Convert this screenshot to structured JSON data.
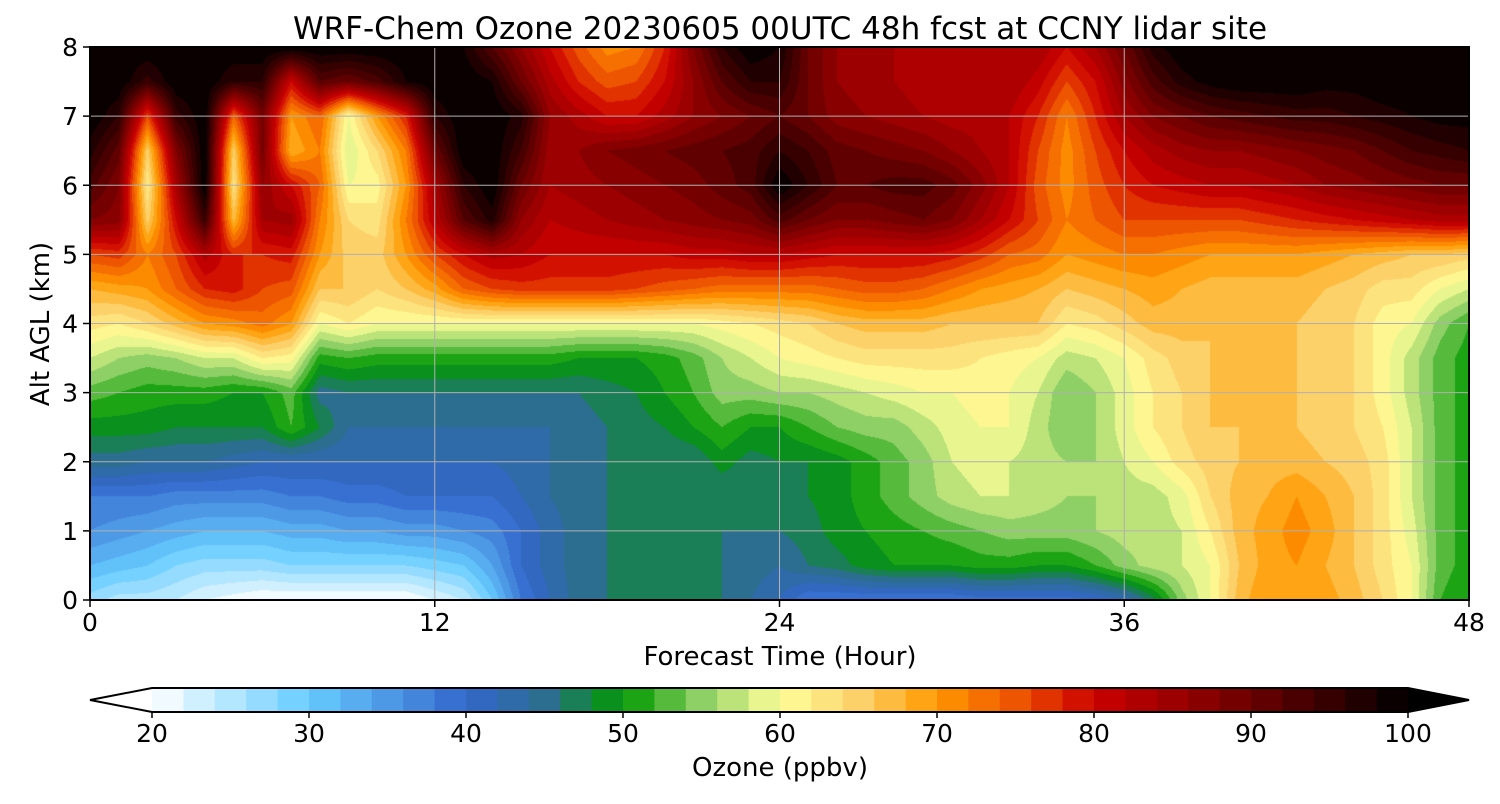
{
  "chart_data": {
    "type": "heatmap",
    "title": "WRF-Chem Ozone  20230605 00UTC 48h fcst at CCNY lidar site",
    "xlabel": "Forecast Time (Hour)",
    "ylabel": "Alt AGL (km)",
    "xlim": [
      0,
      48
    ],
    "ylim": [
      0,
      8
    ],
    "xticks": [
      0,
      12,
      24,
      36,
      48
    ],
    "yticks": [
      0,
      1,
      2,
      3,
      4,
      5,
      6,
      7,
      8
    ],
    "grid": true,
    "x": [
      0,
      1,
      2,
      3,
      4,
      5,
      6,
      7,
      8,
      9,
      10,
      11,
      12,
      13,
      14,
      15,
      16,
      17,
      18,
      19,
      20,
      21,
      22,
      23,
      24,
      25,
      26,
      27,
      28,
      29,
      30,
      31,
      32,
      33,
      34,
      35,
      36,
      37,
      38,
      39,
      40,
      41,
      42,
      43,
      44,
      45,
      46,
      47,
      48
    ],
    "y": [
      0,
      0.5,
      1,
      1.5,
      2,
      2.5,
      3,
      3.5,
      4,
      4.5,
      5,
      5.5,
      6,
      6.5,
      7,
      7.5,
      8
    ],
    "z": [
      [
        27,
        25,
        25,
        24,
        22,
        21,
        20,
        20,
        20,
        20,
        20,
        20,
        22,
        24,
        30,
        38,
        42,
        45,
        46,
        46,
        46,
        46,
        46,
        44,
        42,
        38,
        38,
        38,
        38,
        38,
        38,
        39,
        39,
        39,
        39,
        40,
        42,
        47,
        55,
        60,
        67,
        70,
        70,
        69,
        67,
        64,
        60,
        52,
        50
      ],
      [
        32,
        31,
        30,
        28,
        27,
        27,
        27,
        28,
        28,
        28,
        28,
        28,
        29,
        30,
        34,
        40,
        43,
        45,
        46,
        46,
        46,
        46,
        46,
        45,
        44,
        46,
        47,
        49,
        50,
        50,
        50,
        51,
        51,
        50,
        50,
        52,
        55,
        57,
        58,
        60,
        66,
        69,
        70,
        68,
        66,
        63,
        60,
        53,
        51
      ],
      [
        36,
        35,
        34,
        33,
        32,
        32,
        32,
        33,
        33,
        34,
        34,
        35,
        35,
        36,
        37,
        40,
        43,
        45,
        46,
        46,
        46,
        46,
        46,
        46,
        46,
        47,
        49,
        50,
        51,
        52,
        53,
        54,
        55,
        55,
        55,
        56,
        57,
        57,
        58,
        62,
        67,
        69,
        71,
        69,
        66,
        63,
        59,
        53,
        51
      ],
      [
        38,
        38,
        38,
        37,
        37,
        37,
        37,
        38,
        38,
        39,
        39,
        40,
        40,
        40,
        40,
        42,
        44,
        45,
        46,
        46,
        46,
        46,
        46,
        46,
        47,
        48,
        49,
        51,
        53,
        55,
        57,
        58,
        58,
        57,
        56,
        56,
        57,
        57,
        59,
        64,
        67,
        68,
        70,
        68,
        66,
        63,
        58,
        53,
        51
      ],
      [
        45,
        45,
        44,
        44,
        44,
        43,
        42,
        42,
        42,
        42,
        42,
        42,
        42,
        42,
        42,
        43,
        44,
        45,
        46,
        46,
        46,
        46,
        49,
        47,
        48,
        48,
        49,
        51,
        53,
        55,
        58,
        59,
        58,
        57,
        56,
        56,
        58,
        60,
        63,
        65,
        66,
        67,
        67,
        66,
        65,
        63,
        58,
        53,
        51
      ],
      [
        49,
        49,
        49,
        48,
        48,
        48,
        48,
        52,
        48,
        44,
        44,
        44,
        44,
        44,
        44,
        44,
        44,
        45,
        46,
        47,
        48,
        50,
        52,
        50,
        50,
        52,
        54,
        55,
        55,
        57,
        59,
        60,
        60,
        57,
        54,
        56,
        59,
        62,
        64,
        66,
        66,
        66,
        66,
        65,
        64,
        62,
        58,
        53,
        51
      ],
      [
        53,
        52,
        51,
        51,
        51,
        50,
        50,
        53,
        45,
        46,
        46,
        46,
        46,
        46,
        46,
        46,
        46,
        46,
        47,
        48,
        50,
        52,
        55,
        55,
        56,
        56,
        57,
        58,
        59,
        60,
        60,
        61,
        60,
        58,
        54,
        56,
        59,
        62,
        64,
        66,
        66,
        66,
        66,
        65,
        64,
        61,
        57,
        53,
        51
      ],
      [
        58,
        56,
        55,
        56,
        58,
        58,
        62,
        61,
        51,
        52,
        51,
        51,
        51,
        51,
        51,
        51,
        51,
        50,
        50,
        50,
        51,
        53,
        56,
        58,
        60,
        61,
        62,
        63,
        63,
        63,
        63,
        62,
        61,
        60,
        57,
        58,
        60,
        63,
        65,
        66,
        66,
        66,
        66,
        65,
        64,
        61,
        57,
        53,
        51
      ],
      [
        63,
        62,
        64,
        67,
        70,
        71,
        73,
        70,
        60,
        62,
        60,
        60,
        60,
        60,
        60,
        60,
        60,
        60,
        60,
        60,
        60,
        60,
        61,
        62,
        63,
        64,
        66,
        67,
        67,
        67,
        66,
        66,
        66,
        66,
        62,
        63,
        65,
        67,
        67,
        66,
        66,
        66,
        66,
        65,
        64,
        61,
        60,
        55,
        52
      ],
      [
        68,
        69,
        70,
        74,
        78,
        79,
        76,
        75,
        66,
        66,
        64,
        66,
        69,
        74,
        76,
        77,
        77,
        77,
        77,
        76,
        75,
        74,
        73,
        73,
        73,
        73,
        74,
        75,
        75,
        74,
        72,
        70,
        69,
        68,
        66,
        67,
        68,
        69,
        68,
        67,
        67,
        67,
        67,
        66,
        65,
        63,
        63,
        60,
        58
      ],
      [
        76,
        77,
        72,
        76,
        83,
        78,
        78,
        79,
        70,
        65,
        65,
        70,
        76,
        80,
        83,
        82,
        80,
        80,
        80,
        80,
        80,
        81,
        81,
        82,
        82,
        81,
        80,
        80,
        80,
        80,
        79,
        77,
        74,
        73,
        70,
        71,
        72,
        72,
        71,
        70,
        70,
        70,
        70,
        69,
        68,
        67,
        66,
        66,
        65
      ],
      [
        88,
        87,
        65,
        80,
        95,
        67,
        84,
        85,
        72,
        64,
        63,
        72,
        82,
        92,
        97,
        86,
        82,
        83,
        84,
        85,
        86,
        87,
        88,
        89,
        93,
        90,
        88,
        88,
        89,
        90,
        88,
        84,
        80,
        76,
        72,
        74,
        76,
        76,
        76,
        76,
        76,
        77,
        78,
        79,
        80,
        81,
        82,
        83,
        83
      ],
      [
        93,
        88,
        62,
        84,
        100,
        63,
        86,
        80,
        74,
        60,
        61,
        70,
        84,
        96,
        100,
        90,
        84,
        85,
        86,
        87,
        88,
        89,
        91,
        93,
        100,
        96,
        92,
        92,
        93,
        93,
        91,
        87,
        82,
        75,
        71,
        75,
        78,
        80,
        81,
        82,
        82,
        83,
        84,
        86,
        87,
        88,
        89,
        90,
        90
      ],
      [
        97,
        91,
        65,
        88,
        100,
        65,
        89,
        68,
        72,
        58,
        64,
        72,
        90,
        100,
        100,
        94,
        85,
        86,
        88,
        89,
        90,
        91,
        92,
        93,
        96,
        94,
        91,
        90,
        89,
        88,
        86,
        84,
        82,
        76,
        71,
        76,
        80,
        83,
        85,
        86,
        86,
        87,
        88,
        89,
        90,
        92,
        94,
        95,
        96
      ],
      [
        100,
        96,
        76,
        95,
        100,
        74,
        89,
        70,
        74,
        60,
        70,
        78,
        96,
        100,
        100,
        97,
        86,
        83,
        80,
        80,
        83,
        86,
        88,
        90,
        92,
        90,
        87,
        86,
        85,
        84,
        83,
        83,
        82,
        78,
        72,
        78,
        84,
        88,
        90,
        92,
        93,
        94,
        95,
        95,
        96,
        97,
        98,
        99,
        99
      ],
      [
        100,
        100,
        95,
        100,
        100,
        96,
        96,
        80,
        92,
        90,
        93,
        98,
        100,
        100,
        98,
        90,
        83,
        78,
        75,
        76,
        80,
        86,
        92,
        96,
        96,
        90,
        86,
        85,
        84,
        83,
        82,
        83,
        84,
        81,
        76,
        80,
        87,
        93,
        97,
        99,
        100,
        100,
        100,
        99,
        99,
        100,
        100,
        100,
        100
      ],
      [
        100,
        100,
        100,
        100,
        100,
        100,
        100,
        100,
        100,
        100,
        100,
        100,
        100,
        98,
        92,
        86,
        80,
        75,
        71,
        72,
        78,
        88,
        96,
        100,
        98,
        90,
        86,
        85,
        84,
        83,
        82,
        83,
        84,
        84,
        80,
        84,
        90,
        97,
        100,
        100,
        100,
        100,
        100,
        100,
        100,
        100,
        100,
        100,
        100
      ]
    ],
    "colorbar": {
      "label": "Ozone  (ppbv)",
      "ticks": [
        20,
        30,
        40,
        50,
        60,
        70,
        80,
        90,
        100
      ],
      "min": 20,
      "max": 100,
      "extend": "both",
      "placement": "bottom"
    },
    "colormap_stops": [
      [
        20,
        "#ffffff"
      ],
      [
        30,
        "#66ccff"
      ],
      [
        40,
        "#3366cc"
      ],
      [
        45,
        "#2c6e90"
      ],
      [
        50,
        "#009900"
      ],
      [
        55,
        "#8fd066"
      ],
      [
        60,
        "#ffff99"
      ],
      [
        65,
        "#fcd16a"
      ],
      [
        70,
        "#ff9900"
      ],
      [
        75,
        "#ee5500"
      ],
      [
        80,
        "#cc0000"
      ],
      [
        90,
        "#6b0000"
      ],
      [
        100,
        "#000000"
      ]
    ]
  }
}
